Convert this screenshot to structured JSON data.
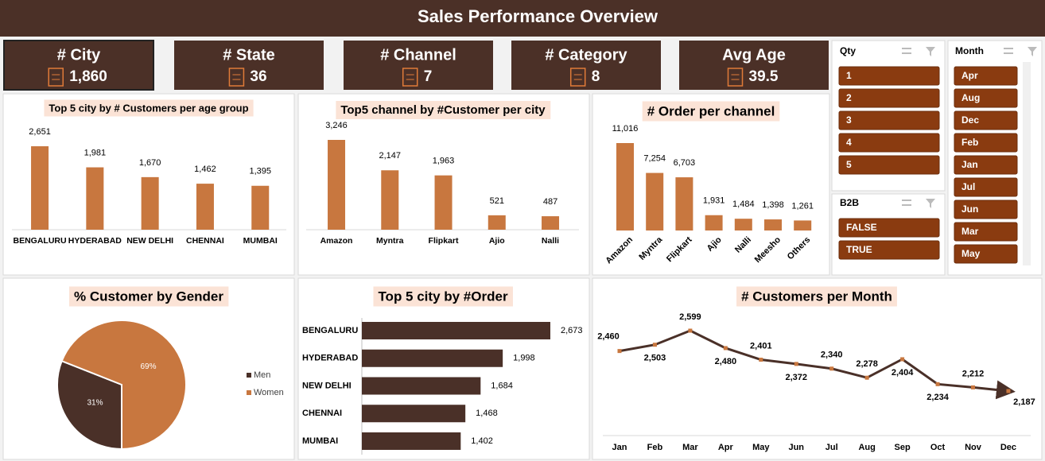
{
  "header": {
    "title": "Sales Performance Overview"
  },
  "kpis": [
    {
      "label": "# City",
      "value": "1,860"
    },
    {
      "label": "# State",
      "value": "36"
    },
    {
      "label": "# Channel",
      "value": "7"
    },
    {
      "label": "# Category",
      "value": "8"
    },
    {
      "label": "Avg Age",
      "value": "39.5"
    }
  ],
  "slicers": [
    {
      "title": "Qty",
      "items": [
        "1",
        "2",
        "3",
        "4",
        "5"
      ]
    },
    {
      "title": "B2B",
      "items": [
        "FALSE",
        "TRUE"
      ]
    },
    {
      "title": "Month",
      "items": [
        "Apr",
        "Aug",
        "Dec",
        "Feb",
        "Jan",
        "Jul",
        "Jun",
        "Mar",
        "May"
      ]
    }
  ],
  "chart_data": [
    {
      "type": "bar",
      "title": "Top 5 city by # Customers per age group",
      "categories": [
        "BENGALURU",
        "HYDERABAD",
        "NEW DELHI",
        "CHENNAI",
        "MUMBAI"
      ],
      "values": [
        2651,
        1981,
        1670,
        1462,
        1395
      ],
      "value_labels": [
        "2,651",
        "1,981",
        "1,670",
        "1,462",
        "1,395"
      ],
      "color": "#c8773f"
    },
    {
      "type": "bar",
      "title": "Top5 channel by #Customer per city",
      "categories": [
        "Amazon",
        "Myntra",
        "Flipkart",
        "Ajio",
        "Nalli"
      ],
      "values": [
        3246,
        2147,
        1963,
        521,
        487
      ],
      "value_labels": [
        "3,246",
        "2,147",
        "1,963",
        "521",
        "487"
      ],
      "color": "#c8773f"
    },
    {
      "type": "bar",
      "title": "# Order per channel",
      "categories": [
        "Amazon",
        "Myntra",
        "Flipkart",
        "Ajio",
        "Nalli",
        "Meesho",
        "Others"
      ],
      "values": [
        11016,
        7254,
        6703,
        1931,
        1484,
        1398,
        1261
      ],
      "value_labels": [
        "11,016",
        "7,254",
        "6,703",
        "1,931",
        "1,484",
        "1,398",
        "1,261"
      ],
      "color": "#c8773f"
    },
    {
      "type": "pie",
      "title": "% Customer by Gender",
      "categories": [
        "Men",
        "Women"
      ],
      "values": [
        31,
        69
      ],
      "value_labels": [
        "31%",
        "69%"
      ],
      "colors": [
        "#4a3028",
        "#c8773f"
      ],
      "legend": "right"
    },
    {
      "type": "bar",
      "orientation": "horizontal",
      "title": "Top 5 city by #Order",
      "categories": [
        "BENGALURU",
        "HYDERABAD",
        "NEW DELHI",
        "CHENNAI",
        "MUMBAI"
      ],
      "values": [
        2673,
        1998,
        1684,
        1468,
        1402
      ],
      "value_labels": [
        "2,673",
        "1,998",
        "1,684",
        "1,468",
        "1,402"
      ],
      "color": "#4a3028"
    },
    {
      "type": "line",
      "title": "# Customers per Month",
      "categories": [
        "Jan",
        "Feb",
        "Mar",
        "Apr",
        "May",
        "Jun",
        "Jul",
        "Aug",
        "Sep",
        "Oct",
        "Nov",
        "Dec"
      ],
      "values": [
        2460,
        2503,
        2599,
        2480,
        2401,
        2372,
        2340,
        2278,
        2404,
        2234,
        2212,
        2187
      ],
      "value_labels": [
        "2,460",
        "2,503",
        "2,599",
        "2,480",
        "2,401",
        "2,372",
        "2,340",
        "2,278",
        "2,404",
        "2,234",
        "2,212",
        "2,187"
      ],
      "color": "#4a3028",
      "marker_color": "#c8773f"
    }
  ]
}
